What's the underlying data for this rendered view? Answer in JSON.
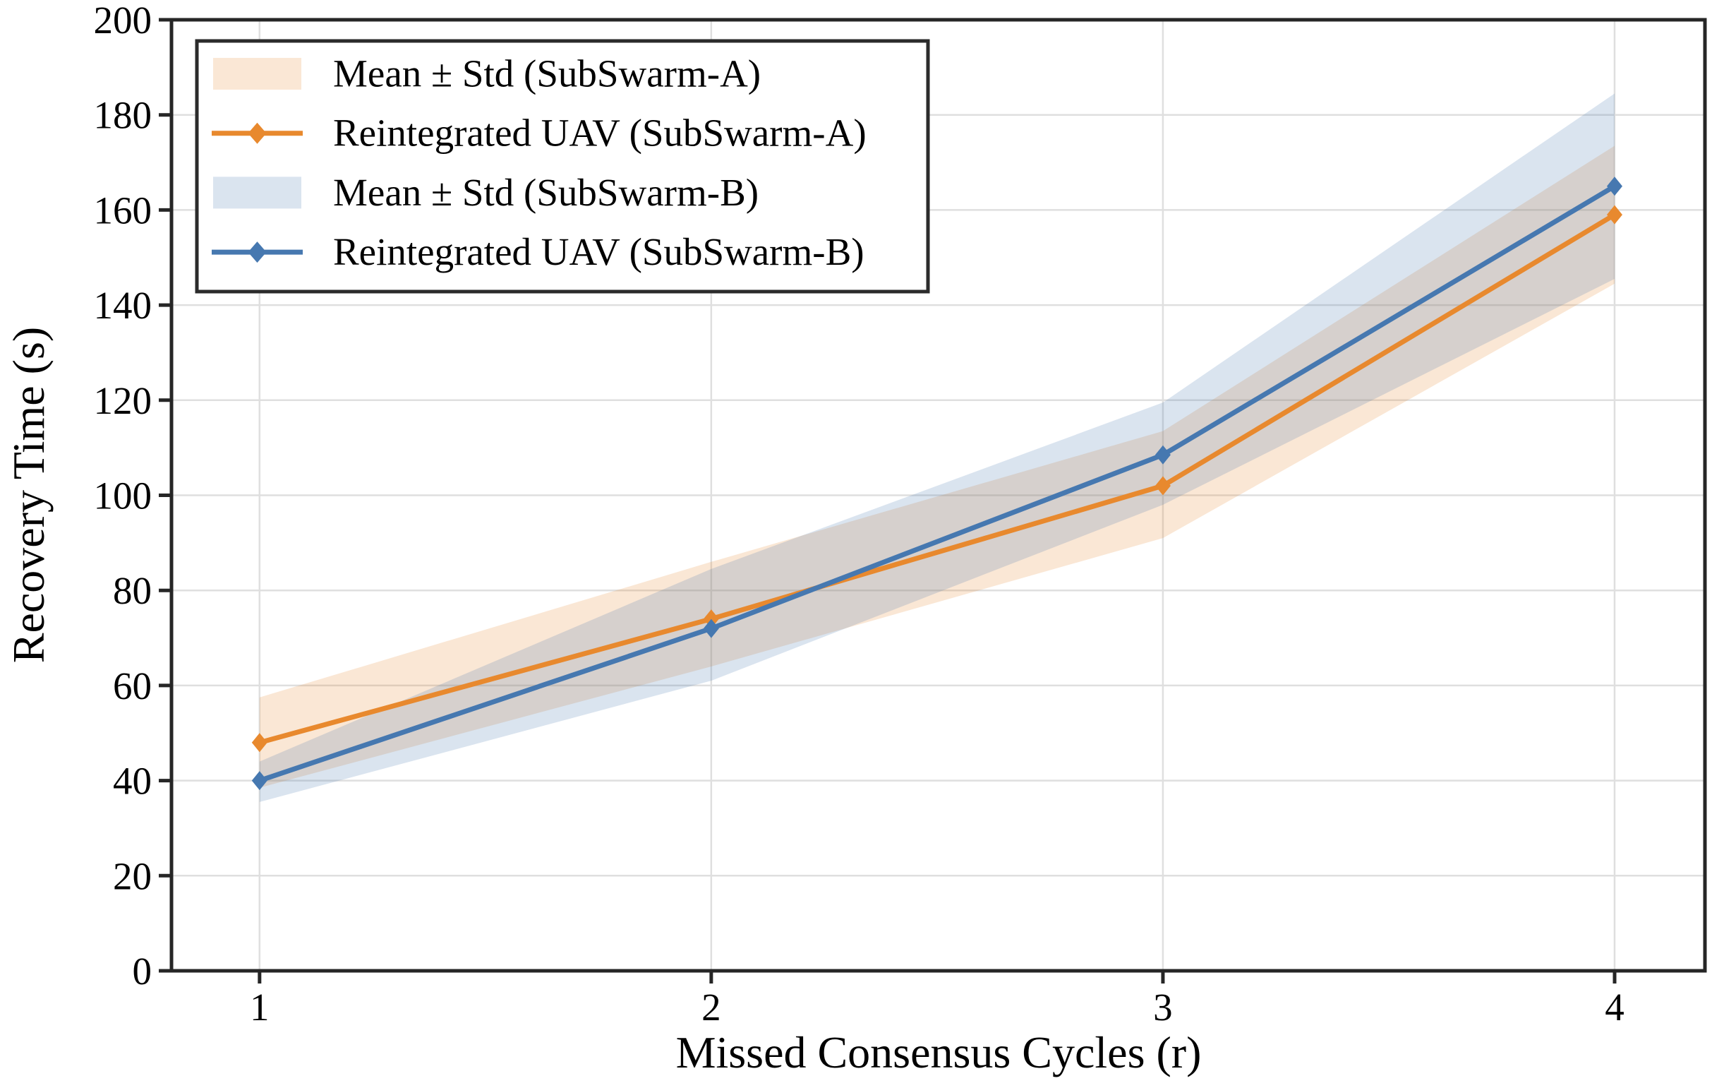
{
  "figure": {
    "background": "#ffffff"
  },
  "chart_data": {
    "type": "line",
    "title": "",
    "xlabel": "Missed Consensus Cycles (r)",
    "ylabel": "Recovery Time (s)",
    "x": [
      1,
      2,
      3,
      4
    ],
    "xtick_labels": [
      "1",
      "2",
      "3",
      "4"
    ],
    "yticks": [
      0,
      20,
      40,
      60,
      80,
      100,
      120,
      140,
      160,
      180,
      200
    ],
    "xlim": [
      0.805,
      4.2
    ],
    "ylim": [
      0,
      200
    ],
    "grid": true,
    "legend_position": "upper-left",
    "band_opacity": 0.2,
    "grid_color": "#DFDFDF",
    "spine_color": "#262626",
    "text_color": "#000000",
    "series": [
      {
        "name": "Reintegrated UAV (SubSwarm-A)",
        "band_name": "Mean ± Std (SubSwarm-A)",
        "color": "#E8892E",
        "marker": "diamond",
        "mean": [
          48,
          74,
          102,
          159
        ],
        "upper": [
          57.5,
          86,
          113.5,
          173.5
        ],
        "lower": [
          38.5,
          64,
          91,
          144.5
        ]
      },
      {
        "name": "Reintegrated UAV (SubSwarm-B)",
        "band_name": "Mean ± Std (SubSwarm-B)",
        "color": "#4678B0",
        "marker": "diamond",
        "mean": [
          40,
          72,
          108.5,
          165
        ],
        "upper": [
          44,
          84.5,
          119.5,
          184.5
        ],
        "lower": [
          35.5,
          61,
          98,
          145.5
        ]
      }
    ],
    "legend": {
      "entries": [
        {
          "type": "band",
          "series": 0,
          "label": "Mean ± Std (SubSwarm-A)"
        },
        {
          "type": "line",
          "series": 0,
          "label": "Reintegrated UAV (SubSwarm-A)"
        },
        {
          "type": "band",
          "series": 1,
          "label": "Mean ± Std (SubSwarm-B)"
        },
        {
          "type": "line",
          "series": 1,
          "label": "Reintegrated UAV (SubSwarm-B)"
        }
      ]
    }
  }
}
